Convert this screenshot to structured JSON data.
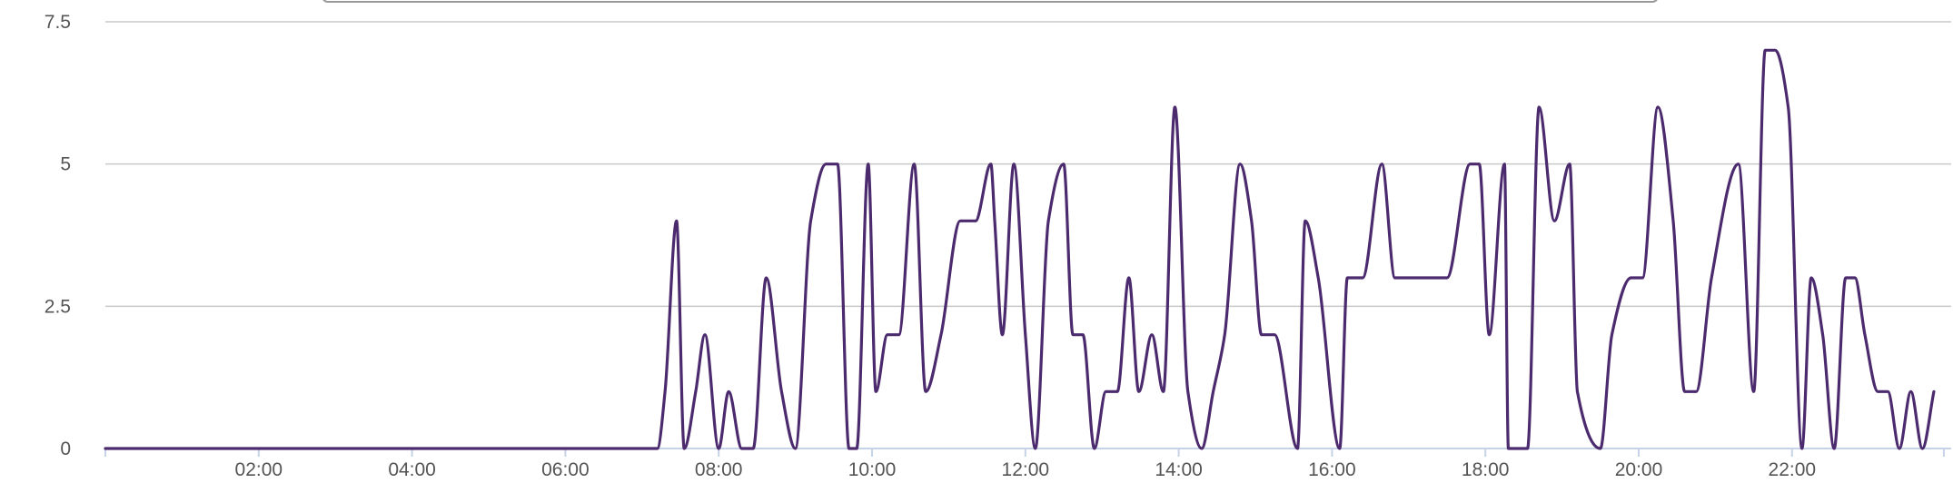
{
  "chart_data": {
    "type": "line",
    "title": "",
    "xlabel": "",
    "ylabel": "",
    "xlim": [
      0,
      24
    ],
    "ylim": [
      0,
      7.5
    ],
    "grid": true,
    "legend": "none",
    "line_color": "#4b2a6e",
    "y_ticks": [
      {
        "value": 0,
        "label": "0"
      },
      {
        "value": 2.5,
        "label": "2.5"
      },
      {
        "value": 5,
        "label": "5"
      },
      {
        "value": 7.5,
        "label": "7.5"
      }
    ],
    "x_ticks": [
      {
        "value": 2,
        "label": "02:00"
      },
      {
        "value": 4,
        "label": "04:00"
      },
      {
        "value": 6,
        "label": "06:00"
      },
      {
        "value": 8,
        "label": "08:00"
      },
      {
        "value": 10,
        "label": "10:00"
      },
      {
        "value": 12,
        "label": "12:00"
      },
      {
        "value": 14,
        "label": "14:00"
      },
      {
        "value": 16,
        "label": "16:00"
      },
      {
        "value": 18,
        "label": "18:00"
      },
      {
        "value": 20,
        "label": "20:00"
      },
      {
        "value": 22,
        "label": "22:00"
      }
    ],
    "series": [
      {
        "name": "",
        "x": [
          0.0,
          7.2,
          7.3,
          7.45,
          7.55,
          7.7,
          7.82,
          8.0,
          8.13,
          8.3,
          8.45,
          8.62,
          8.82,
          9.0,
          9.2,
          9.4,
          9.55,
          9.7,
          9.8,
          9.95,
          10.05,
          10.2,
          10.35,
          10.55,
          10.7,
          10.9,
          11.15,
          11.35,
          11.55,
          11.6,
          11.7,
          11.85,
          12.0,
          12.13,
          12.3,
          12.5,
          12.62,
          12.75,
          12.9,
          13.05,
          13.2,
          13.35,
          13.48,
          13.65,
          13.8,
          13.95,
          14.12,
          14.3,
          14.45,
          14.6,
          14.8,
          14.95,
          15.08,
          15.25,
          15.55,
          15.65,
          15.82,
          16.1,
          16.2,
          16.4,
          16.65,
          16.82,
          17.5,
          17.8,
          17.92,
          18.05,
          18.25,
          18.3,
          18.55,
          18.7,
          18.9,
          19.1,
          19.2,
          19.5,
          19.65,
          19.9,
          20.05,
          20.25,
          20.45,
          20.6,
          20.75,
          20.95,
          21.3,
          21.5,
          21.65,
          21.78,
          21.95,
          22.13,
          22.25,
          22.4,
          22.55,
          22.7,
          22.82,
          22.95,
          23.12,
          23.25,
          23.4,
          23.55,
          23.7,
          23.85
        ],
        "y": [
          0,
          0,
          1,
          4,
          0,
          1,
          2,
          0,
          1,
          0,
          0,
          3,
          1,
          0,
          4,
          5,
          5,
          0,
          0,
          5,
          1,
          2,
          2,
          5,
          1,
          2,
          4,
          4,
          5,
          4,
          2,
          5,
          2,
          0,
          4,
          5,
          2,
          2,
          0,
          1,
          1,
          3,
          1,
          2,
          1,
          6,
          1,
          0,
          1,
          2,
          5,
          4,
          2,
          2,
          0,
          4,
          3,
          0,
          3,
          3,
          5,
          3,
          3,
          5,
          5,
          2,
          5,
          0,
          0,
          6,
          4,
          5,
          1,
          0,
          2,
          3,
          3,
          6,
          4,
          1,
          1,
          3,
          5,
          1,
          7,
          7,
          6,
          0,
          3,
          2,
          0,
          3,
          3,
          2,
          1,
          1,
          0,
          1,
          0,
          1
        ]
      }
    ]
  }
}
